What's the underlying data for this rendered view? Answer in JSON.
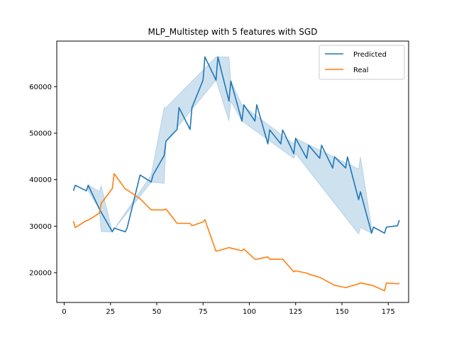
{
  "chart_data": {
    "type": "line",
    "title": "MLP_Multistep with 5 features with SGD",
    "xlabel": "",
    "ylabel": "",
    "xlim": [
      -4,
      186
    ],
    "ylim": [
      13600,
      69800
    ],
    "xticks": [
      0,
      25,
      50,
      75,
      100,
      125,
      150,
      175
    ],
    "yticks": [
      20000,
      30000,
      40000,
      50000,
      60000
    ],
    "grid": false,
    "legend_position": "top-right",
    "colors": {
      "predicted": "#1f77b4",
      "real": "#ff7f0e",
      "band": "#1f77b4"
    },
    "series": [
      {
        "name": "Predicted",
        "x": [
          5,
          6,
          12,
          13,
          19,
          26,
          27,
          33,
          34,
          41,
          47,
          48,
          54,
          55,
          61,
          62,
          68,
          69,
          75,
          76,
          82,
          83,
          89,
          90,
          96,
          97,
          103,
          104,
          110,
          111,
          117,
          118,
          124,
          125,
          131,
          132,
          138,
          139,
          145,
          146,
          152,
          153,
          159,
          160,
          166,
          167,
          173,
          174,
          180,
          181
        ],
        "y": [
          37600,
          38800,
          37600,
          38800,
          33700,
          28800,
          29600,
          28800,
          29600,
          41000,
          39500,
          41000,
          45200,
          48300,
          50800,
          55500,
          50800,
          55500,
          61400,
          66400,
          61400,
          66400,
          56900,
          61200,
          52600,
          56100,
          52600,
          56100,
          47700,
          50700,
          47700,
          50700,
          45600,
          48900,
          44600,
          47400,
          44600,
          47400,
          42500,
          44900,
          42500,
          44900,
          35700,
          37400,
          28500,
          29800,
          28500,
          29800,
          30100,
          31300
        ]
      },
      {
        "name": "Real",
        "x": [
          5,
          6,
          12,
          13,
          19,
          20,
          26,
          27,
          33,
          34,
          41,
          47,
          48,
          54,
          55,
          61,
          62,
          68,
          69,
          75,
          76,
          82,
          83,
          89,
          90,
          96,
          97,
          103,
          104,
          110,
          111,
          117,
          118,
          124,
          125,
          131,
          132,
          138,
          139,
          145,
          146,
          152,
          153,
          159,
          160,
          166,
          167,
          173,
          174,
          180,
          181
        ],
        "y": [
          31100,
          29700,
          31200,
          31300,
          32800,
          34900,
          38100,
          41300,
          38000,
          37800,
          35900,
          33500,
          33500,
          33500,
          33700,
          30600,
          30600,
          30600,
          30100,
          30900,
          31400,
          24600,
          24700,
          25400,
          25300,
          24700,
          25100,
          22900,
          22900,
          23400,
          22900,
          22900,
          22900,
          20200,
          20400,
          19900,
          19700,
          19000,
          18800,
          17500,
          17300,
          16800,
          16900,
          17600,
          17800,
          17300,
          17200,
          16100,
          17800,
          17600,
          17800
        ]
      }
    ],
    "band": {
      "x": [
        13,
        19,
        20,
        26,
        47,
        54,
        55,
        82,
        89,
        90,
        96,
        124,
        125,
        159,
        160,
        166
      ],
      "lower": [
        37600,
        33700,
        28800,
        28800,
        39500,
        39200,
        48300,
        61400,
        52600,
        56900,
        52600,
        44600,
        45600,
        28300,
        29700,
        28500
      ],
      "upper": [
        38800,
        37500,
        38700,
        28800,
        41000,
        55500,
        55500,
        66400,
        66400,
        61200,
        56100,
        47700,
        48900,
        42300,
        44900,
        29800
      ]
    }
  }
}
